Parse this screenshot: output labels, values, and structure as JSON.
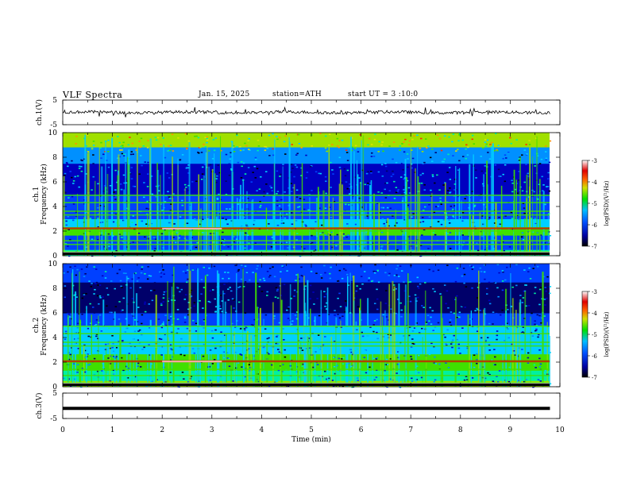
{
  "header": {
    "title": "VLF Spectra",
    "date": "Jan. 15, 2025",
    "station": "station=ATH",
    "start": "start UT = 3 :10:0"
  },
  "chart_data": [
    {
      "type": "line",
      "panel": "ch1-waveform",
      "ylabel": "ch.1(V)",
      "ylim": [
        -5,
        5
      ],
      "yticks": [
        "5",
        "-5"
      ],
      "x": "Time (min)",
      "xlim": [
        0,
        10
      ],
      "description_values": {
        "baseline": 0,
        "noise_amplitude": 0.6,
        "spike_max": 1.5
      }
    },
    {
      "type": "heatmap",
      "panel": "ch1-spectrogram",
      "ylabel": "ch.1\nFrequency (kHz)",
      "ylim": [
        0,
        10
      ],
      "yticks": [
        "10",
        "8",
        "6",
        "4",
        "2",
        "0"
      ],
      "xlim": [
        0,
        9.8
      ],
      "colorbar": {
        "label": "log(PSD)(V²/Hz)",
        "range": [
          -7,
          -3
        ],
        "ticks": [
          "-3",
          "-4",
          "-5",
          "-6",
          "-7"
        ]
      },
      "bands_khz": [
        0.3,
        0.9,
        1.2,
        2.0,
        2.25,
        3.3,
        3.6,
        4.3,
        4.9
      ],
      "strong_band_khz": 2.2
    },
    {
      "type": "heatmap",
      "panel": "ch2-spectrogram",
      "ylabel": "ch.2\nFrequency (kHz)",
      "ylim": [
        0,
        10
      ],
      "yticks": [
        "10",
        "8",
        "6",
        "4",
        "2",
        "0"
      ],
      "xlim": [
        0,
        9.8
      ],
      "colorbar": {
        "label": "log(PSD)(V²/Hz)",
        "range": [
          -7,
          -3
        ],
        "ticks": [
          "-3",
          "-4",
          "-5",
          "-6",
          "-7"
        ]
      },
      "bands_khz": [
        0.3,
        0.9,
        1.4,
        2.0,
        2.1,
        3.3,
        3.6,
        4.3,
        4.9
      ],
      "strong_band_khz": 2.05
    },
    {
      "type": "line",
      "panel": "ch3-waveform",
      "ylabel": "ch.3(V)",
      "ylim": [
        -5,
        5
      ],
      "yticks": [
        "5",
        "-5"
      ],
      "x": [
        0,
        9.8
      ],
      "y": [
        -1,
        -1
      ]
    }
  ],
  "xaxis": {
    "label": "Time (min)",
    "ticks": [
      "0",
      "1",
      "2",
      "3",
      "4",
      "5",
      "6",
      "7",
      "8",
      "9",
      "10"
    ],
    "range": [
      0,
      10
    ]
  }
}
